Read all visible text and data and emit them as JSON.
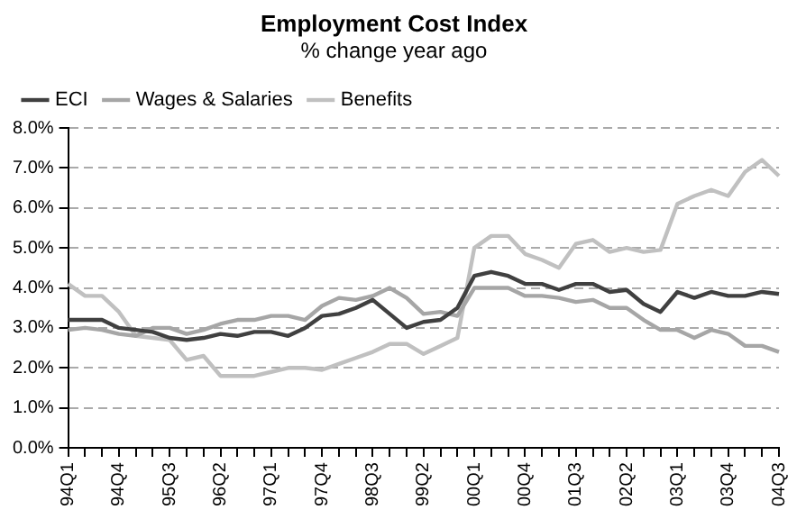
{
  "chart_data": {
    "type": "line",
    "title": "Employment Cost Index",
    "subtitle": "% change year ago",
    "categories": [
      "94Q1",
      null,
      null,
      "94Q4",
      null,
      null,
      "95Q3",
      null,
      null,
      "96Q2",
      null,
      null,
      "97Q1",
      null,
      null,
      "97Q4",
      null,
      null,
      "98Q3",
      null,
      null,
      "99Q2",
      null,
      null,
      "00Q1",
      null,
      null,
      "00Q4",
      null,
      null,
      "01Q3",
      null,
      null,
      "02Q2",
      null,
      null,
      "03Q1",
      null,
      null,
      "03Q4",
      null,
      null,
      "04Q3"
    ],
    "series": [
      {
        "name": "ECI",
        "color": "#404040",
        "values": [
          3.2,
          3.2,
          3.2,
          3.0,
          2.95,
          2.9,
          2.75,
          2.7,
          2.75,
          2.85,
          2.8,
          2.9,
          2.9,
          2.8,
          3.0,
          3.3,
          3.35,
          3.5,
          3.7,
          3.35,
          3.0,
          3.15,
          3.2,
          3.5,
          4.3,
          4.4,
          4.3,
          4.1,
          4.1,
          3.95,
          4.1,
          4.1,
          3.9,
          3.95,
          3.6,
          3.4,
          3.9,
          3.75,
          3.9,
          3.8,
          3.8,
          3.9,
          3.85
        ]
      },
      {
        "name": "Wages & Salaries",
        "color": "#a6a6a6",
        "values": [
          2.95,
          3.0,
          2.95,
          2.85,
          2.8,
          3.0,
          3.0,
          2.85,
          2.95,
          3.1,
          3.2,
          3.2,
          3.3,
          3.3,
          3.2,
          3.55,
          3.75,
          3.7,
          3.8,
          4.0,
          3.75,
          3.35,
          3.4,
          3.3,
          4.0,
          4.0,
          4.0,
          3.8,
          3.8,
          3.75,
          3.65,
          3.7,
          3.5,
          3.5,
          3.2,
          2.95,
          2.95,
          2.75,
          2.95,
          2.85,
          2.55,
          2.55,
          2.4
        ]
      },
      {
        "name": "Benefits",
        "color": "#c0c0c0",
        "values": [
          4.1,
          3.8,
          3.8,
          3.4,
          2.8,
          2.75,
          2.7,
          2.2,
          2.3,
          1.8,
          1.8,
          1.8,
          1.9,
          2.0,
          2.0,
          1.95,
          2.1,
          2.25,
          2.4,
          2.6,
          2.6,
          2.35,
          2.55,
          2.75,
          5.0,
          5.3,
          5.3,
          4.85,
          4.7,
          4.5,
          5.1,
          5.2,
          4.9,
          5.0,
          4.9,
          4.95,
          6.1,
          6.3,
          6.45,
          6.3,
          6.9,
          7.2,
          6.8
        ]
      }
    ],
    "ylim": [
      0,
      8
    ],
    "yticks": [
      {
        "value": 0,
        "label": "0.0%"
      },
      {
        "value": 1,
        "label": "1.0%"
      },
      {
        "value": 2,
        "label": "2.0%"
      },
      {
        "value": 3,
        "label": "3.0%"
      },
      {
        "value": 4,
        "label": "4.0%"
      },
      {
        "value": 5,
        "label": "5.0%"
      },
      {
        "value": 6,
        "label": "6.0%"
      },
      {
        "value": 7,
        "label": "7.0%"
      },
      {
        "value": 8,
        "label": "8.0%"
      }
    ],
    "grid": "y",
    "legend": "top left",
    "marker": "none",
    "line_style": "solid"
  }
}
